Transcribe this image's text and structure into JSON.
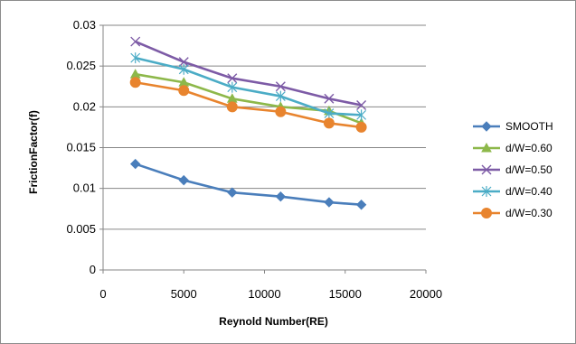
{
  "chart_data": {
    "type": "line",
    "xlabel": "Reynold Number(RE)",
    "ylabel": "FrictionFactor(f)",
    "xlim": [
      0,
      20000
    ],
    "ylim": [
      0,
      0.03
    ],
    "xticks": [
      0,
      5000,
      10000,
      15000,
      20000
    ],
    "yticks": [
      0,
      0.005,
      0.01,
      0.015,
      0.02,
      0.025,
      0.03
    ],
    "xtick_labels": [
      "0",
      "5000",
      "10000",
      "15000",
      "20000"
    ],
    "ytick_labels": [
      "0",
      "0.005",
      "0.01",
      "0.015",
      "0.02",
      "0.025",
      "0.03"
    ],
    "grid": "horizontal",
    "legend_position": "right",
    "x": [
      2000,
      5000,
      8000,
      11000,
      14000,
      16000
    ],
    "series": [
      {
        "name": "SMOOTH",
        "values": [
          0.013,
          0.011,
          0.0095,
          0.009,
          0.0083,
          0.008
        ],
        "color": "#4a7ebb",
        "marker": "diamond"
      },
      {
        "name": "d/W=0.60",
        "values": [
          0.024,
          0.023,
          0.021,
          0.02,
          0.0195,
          0.018
        ],
        "color": "#8db84a",
        "marker": "triangle"
      },
      {
        "name": "d/W=0.50",
        "values": [
          0.028,
          0.0255,
          0.0235,
          0.0225,
          0.021,
          0.0202
        ],
        "color": "#7d5ba6",
        "marker": "x"
      },
      {
        "name": "d/W=0.40",
        "values": [
          0.026,
          0.0246,
          0.0224,
          0.0213,
          0.0192,
          0.019
        ],
        "color": "#4bacc6",
        "marker": "asterisk"
      },
      {
        "name": "d/W=0.30",
        "values": [
          0.023,
          0.022,
          0.02,
          0.0194,
          0.018,
          0.0175
        ],
        "color": "#e8842e",
        "marker": "circle"
      }
    ]
  }
}
